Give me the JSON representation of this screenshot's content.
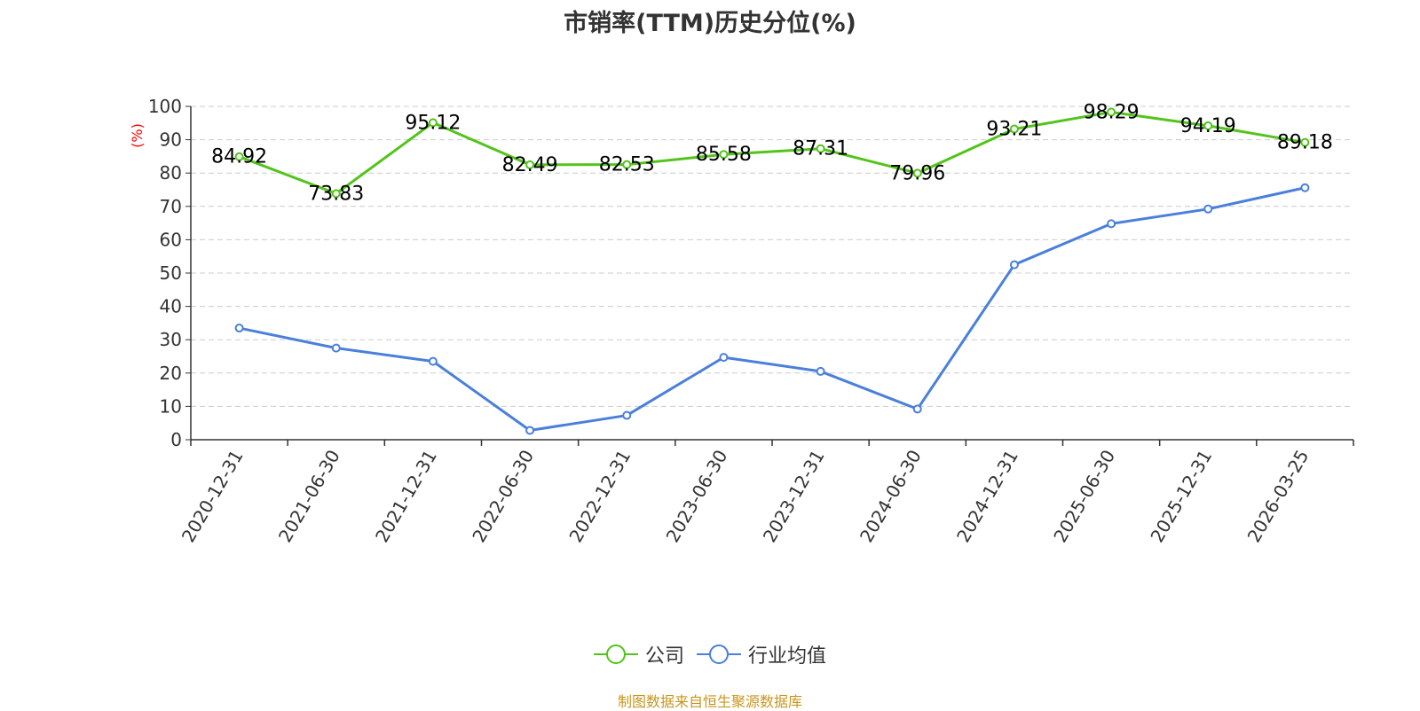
{
  "chart_data": {
    "type": "line",
    "title": "市销率(TTM)历史分位(%)",
    "ylabel": "(%)",
    "ylim": [
      0,
      100
    ],
    "yticks": [
      0,
      10,
      20,
      30,
      40,
      50,
      60,
      70,
      80,
      90,
      100
    ],
    "grid": true,
    "legend_position": "bottom",
    "categories": [
      "2020-12-31",
      "2021-06-30",
      "2021-12-31",
      "2022-06-30",
      "2022-12-31",
      "2023-06-30",
      "2023-12-31",
      "2024-06-30",
      "2024-12-31",
      "2025-06-30",
      "2025-12-31",
      "2026-03-25"
    ],
    "series": [
      {
        "name": "公司",
        "color": "#52c41a",
        "show_labels": true,
        "values": [
          84.92,
          73.83,
          95.12,
          82.49,
          82.53,
          85.58,
          87.31,
          79.96,
          93.21,
          98.29,
          94.19,
          89.18
        ]
      },
      {
        "name": "行业均值",
        "color": "#4a7fdc",
        "show_labels": false,
        "values": [
          33.5,
          27.5,
          23.5,
          2.8,
          7.3,
          24.7,
          20.5,
          9.2,
          52.5,
          64.8,
          69.2,
          75.6
        ]
      }
    ]
  },
  "source": "制图数据来自恒生聚源数据库"
}
